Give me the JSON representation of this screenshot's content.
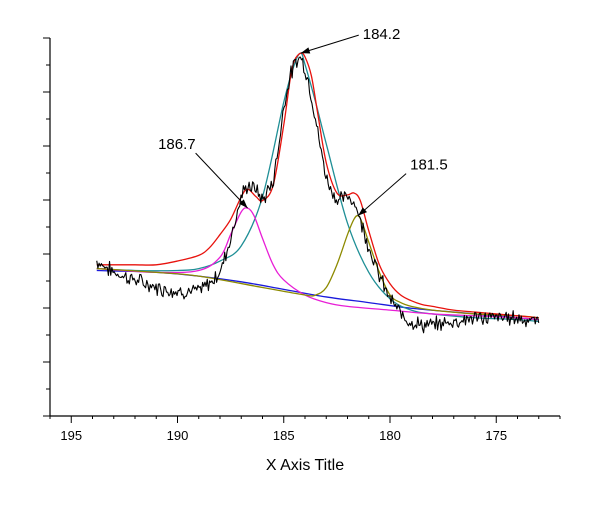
{
  "chart_data": {
    "type": "line",
    "xlabel": "X Axis Title",
    "ylabel": "",
    "x_reversed": true,
    "xlim": [
      172,
      196
    ],
    "ylim": [
      0,
      100
    ],
    "x_ticks": [
      195,
      190,
      185,
      180,
      175
    ],
    "y_tick_count": 15,
    "y_tick_labels_visible": false,
    "grid": false,
    "legend": "none",
    "series": [
      {
        "role": "raw",
        "color": "#000000",
        "x": [
          193.8,
          193.0,
          192.0,
          191.0,
          190.0,
          189.0,
          188.5,
          188.0,
          187.5,
          187.0,
          186.7,
          186.3,
          186.0,
          185.5,
          185.2,
          185.0,
          184.7,
          184.4,
          184.2,
          184.0,
          183.7,
          183.4,
          183.0,
          182.5,
          182.0,
          181.7,
          181.4,
          181.0,
          180.5,
          180.0,
          179.5,
          179.0,
          178.5,
          178.0,
          177.0,
          176.0,
          175.0,
          174.0,
          173.0
        ],
        "y": [
          41,
          38,
          36,
          34,
          33,
          33,
          35,
          38,
          47,
          58,
          61,
          60,
          57,
          62,
          73,
          82,
          90,
          94,
          95,
          92,
          85,
          75,
          63,
          57,
          58,
          57,
          52,
          45,
          37,
          31,
          27,
          25,
          24,
          24,
          25,
          26,
          26,
          26,
          25
        ]
      },
      {
        "role": "envelope",
        "color": "#e8120d",
        "x": [
          193.8,
          193.0,
          192.0,
          191.0,
          190.0,
          189.0,
          188.5,
          188.0,
          187.5,
          187.0,
          186.7,
          186.3,
          186.0,
          185.5,
          185.0,
          184.7,
          184.5,
          184.2,
          184.0,
          183.7,
          183.4,
          183.0,
          182.5,
          182.0,
          181.7,
          181.4,
          181.0,
          180.5,
          180.0,
          179.5,
          179.0,
          178.5,
          178.0,
          177.0,
          176.0,
          175.0,
          174.0,
          173.0
        ],
        "y": [
          40,
          40,
          40,
          40,
          41,
          42.5,
          44.5,
          48,
          52,
          58,
          60,
          58,
          57,
          61,
          77,
          89,
          94,
          96,
          95,
          90,
          80,
          67,
          59,
          58.5,
          59,
          57,
          49,
          40,
          35,
          32,
          30.5,
          29.5,
          29,
          28,
          27.5,
          27,
          26.5,
          26
        ]
      },
      {
        "role": "component",
        "label": "184.2",
        "color": "#1f8f96",
        "x": [
          193.8,
          192.0,
          190.0,
          189.0,
          188.0,
          187.0,
          186.0,
          185.0,
          184.5,
          184.2,
          184.0,
          183.5,
          183.0,
          182.0,
          181.0,
          180.0,
          179.0,
          178.0,
          176.0,
          174.0,
          173.0
        ],
        "y": [
          39,
          38.5,
          38.5,
          39,
          41,
          45,
          58,
          83,
          93,
          96,
          93,
          83,
          72,
          51,
          38,
          31,
          28,
          27,
          26,
          25.5,
          25
        ]
      },
      {
        "role": "component",
        "label": "186.7",
        "color": "#e81ed6",
        "x": [
          193.8,
          191.0,
          189.0,
          188.0,
          187.5,
          187.0,
          186.7,
          186.4,
          186.0,
          185.5,
          185.0,
          184.0,
          183.0,
          182.0,
          180.0,
          178.0,
          176.0,
          174.0,
          173.0
        ],
        "y": [
          39,
          38,
          38.5,
          42,
          48,
          54,
          55,
          53,
          47,
          40,
          36,
          32,
          30,
          29,
          28,
          27,
          26.5,
          26,
          25.5
        ]
      },
      {
        "role": "component",
        "label": "181.5",
        "color": "#8d8a00",
        "x": [
          193.8,
          191.0,
          189.0,
          186.0,
          184.0,
          183.5,
          183.0,
          182.5,
          182.0,
          181.7,
          181.5,
          181.3,
          181.0,
          180.5,
          180.0,
          179.5,
          179.0,
          178.0,
          176.0,
          174.0,
          173.0
        ],
        "y": [
          39,
          38,
          37,
          34,
          32,
          32,
          34,
          40,
          48,
          52,
          53,
          51,
          46,
          38,
          32,
          30,
          29,
          28,
          27,
          26.5,
          26
        ]
      },
      {
        "role": "baseline",
        "color": "#1a1adb",
        "x": [
          193.8,
          191.0,
          189.0,
          187.0,
          185.0,
          183.0,
          181.0,
          179.0,
          177.0,
          175.0,
          173.0
        ],
        "y": [
          38.5,
          38,
          37,
          35.5,
          33.5,
          31.5,
          30,
          28.5,
          27.5,
          26.5,
          25.5
        ]
      }
    ],
    "annotations": [
      {
        "text": "184.2",
        "x": 184.2,
        "y": 96
      },
      {
        "text": "186.7",
        "x": 186.7,
        "y": 55
      },
      {
        "text": "181.5",
        "x": 181.5,
        "y": 53
      }
    ]
  }
}
